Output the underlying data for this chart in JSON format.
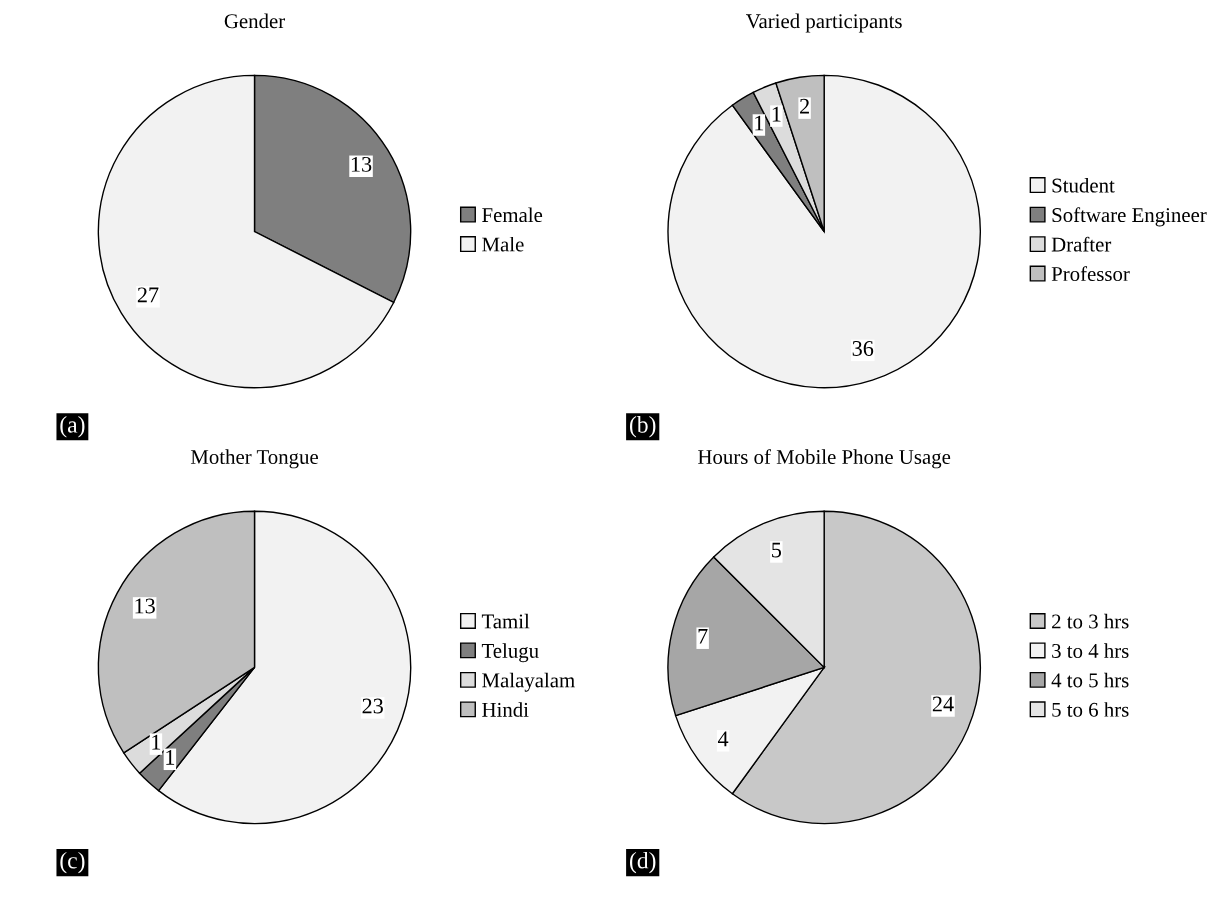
{
  "chart_data": [
    {
      "type": "pie",
      "title": "Gender",
      "categories": [
        "Female",
        "Male"
      ],
      "values": [
        13,
        27
      ],
      "colors": [
        "#7f7f7f",
        "#f2f2f2"
      ],
      "data_labels": true,
      "legend": "right",
      "annotations": [
        "(a)"
      ]
    },
    {
      "type": "pie",
      "title": "Varied participants",
      "categories": [
        "Student",
        "Software Engineer",
        "Drafter",
        "Professor"
      ],
      "values": [
        36,
        1,
        1,
        2
      ],
      "colors": [
        "#f2f2f2",
        "#7f7f7f",
        "#dcdcdc",
        "#bfbfbf"
      ],
      "data_labels": true,
      "legend": "right",
      "annotations": [
        "(b)"
      ]
    },
    {
      "type": "pie",
      "title": "Mother Tongue",
      "categories": [
        "Tamil",
        "Telugu",
        "Malayalam",
        "Hindi"
      ],
      "values": [
        23,
        1,
        1,
        13
      ],
      "colors": [
        "#f2f2f2",
        "#7f7f7f",
        "#dcdcdc",
        "#bfbfbf"
      ],
      "data_labels": true,
      "legend": "right",
      "annotations": [
        "(c)"
      ]
    },
    {
      "type": "pie",
      "title": "Hours of Mobile Phone Usage",
      "categories": [
        "2 to 3 hrs",
        "3 to 4 hrs",
        "4 to 5 hrs",
        "5 to 6 hrs"
      ],
      "values": [
        24,
        4,
        7,
        5
      ],
      "colors": [
        "#c8c8c8",
        "#f2f2f2",
        "#a6a6a6",
        "#e4e4e4"
      ],
      "data_labels": true,
      "legend": "right",
      "annotations": [
        "(d)"
      ]
    }
  ]
}
